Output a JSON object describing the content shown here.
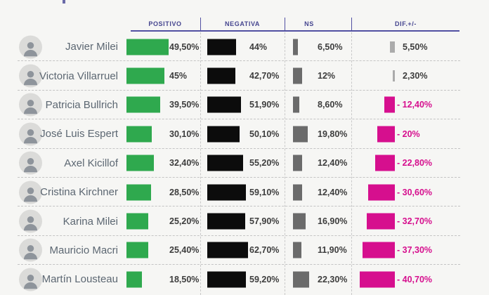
{
  "columns": {
    "positivo": "POSITIVO",
    "negativa": "NEGATIVA",
    "ns": "NS",
    "dif": "DIF.+/-"
  },
  "rows": [
    {
      "name": "Javier Milei",
      "positivo": 49.5,
      "positivo_label": "49,50%",
      "negativa": 44,
      "negativa_label": "44%",
      "ns": 6.5,
      "ns_label": "6,50%",
      "dif": 5.5,
      "dif_label": "5,50%"
    },
    {
      "name": "Victoria Villarruel",
      "positivo": 45,
      "positivo_label": "45%",
      "negativa": 42.7,
      "negativa_label": "42,70%",
      "ns": 12,
      "ns_label": "12%",
      "dif": 2.3,
      "dif_label": "2,30%"
    },
    {
      "name": "Patricia Bullrich",
      "positivo": 39.5,
      "positivo_label": "39,50%",
      "negativa": 51.9,
      "negativa_label": "51,90%",
      "ns": 8.6,
      "ns_label": "8,60%",
      "dif": -12.4,
      "dif_label": "- 12,40%"
    },
    {
      "name": "José Luis Espert",
      "positivo": 30.1,
      "positivo_label": "30,10%",
      "negativa": 50.1,
      "negativa_label": "50,10%",
      "ns": 19.8,
      "ns_label": "19,80%",
      "dif": -20,
      "dif_label": "- 20%"
    },
    {
      "name": "Axel Kicillof",
      "positivo": 32.4,
      "positivo_label": "32,40%",
      "negativa": 55.2,
      "negativa_label": "55,20%",
      "ns": 12.4,
      "ns_label": "12,40%",
      "dif": -22.8,
      "dif_label": "- 22,80%"
    },
    {
      "name": "Cristina Kirchner",
      "positivo": 28.5,
      "positivo_label": "28,50%",
      "negativa": 59.1,
      "negativa_label": "59,10%",
      "ns": 12.4,
      "ns_label": "12,40%",
      "dif": -30.6,
      "dif_label": "- 30,60%"
    },
    {
      "name": "Karina Milei",
      "positivo": 25.2,
      "positivo_label": "25,20%",
      "negativa": 57.9,
      "negativa_label": "57,90%",
      "ns": 16.9,
      "ns_label": "16,90%",
      "dif": -32.7,
      "dif_label": "- 32,70%"
    },
    {
      "name": "Mauricio Macri",
      "positivo": 25.4,
      "positivo_label": "25,40%",
      "negativa": 62.7,
      "negativa_label": "62,70%",
      "ns": 11.9,
      "ns_label": "11,90%",
      "dif": -37.3,
      "dif_label": "- 37,30%"
    },
    {
      "name": "Martín Lousteau",
      "positivo": 18.5,
      "positivo_label": "18,50%",
      "negativa": 59.2,
      "negativa_label": "59,20%",
      "ns": 22.3,
      "ns_label": "22,30%",
      "dif": -40.7,
      "dif_label": "- 40,70%"
    }
  ],
  "colors": {
    "positivo_bar": "#2fa94e",
    "negativa_bar": "#0c0c0c",
    "ns_bar": "#6b6b6b",
    "dif_negative_bar": "#d60f8e",
    "dif_positive_bar": "#ababab",
    "header_text": "#45458f",
    "header_line": "#5150a2",
    "name_text": "#5c6772",
    "value_text": "#3d3d3d",
    "background": "#f6f6f4"
  },
  "chart_data": {
    "type": "bar",
    "title": "",
    "categories": [
      "Javier Milei",
      "Victoria Villarruel",
      "Patricia Bullrich",
      "José Luis Espert",
      "Axel Kicillof",
      "Cristina Kirchner",
      "Karina Milei",
      "Mauricio Macri",
      "Martín Lousteau"
    ],
    "series": [
      {
        "name": "POSITIVO",
        "values": [
          49.5,
          45,
          39.5,
          30.1,
          32.4,
          28.5,
          25.2,
          25.4,
          18.5
        ]
      },
      {
        "name": "NEGATIVA",
        "values": [
          44,
          42.7,
          51.9,
          50.1,
          55.2,
          59.1,
          57.9,
          62.7,
          59.2
        ]
      },
      {
        "name": "NS",
        "values": [
          6.5,
          12,
          8.6,
          19.8,
          12.4,
          12.4,
          16.9,
          11.9,
          22.3
        ]
      },
      {
        "name": "DIF.+/-",
        "values": [
          5.5,
          2.3,
          -12.4,
          -20,
          -22.8,
          -30.6,
          -32.7,
          -37.3,
          -40.7
        ]
      }
    ],
    "xlabel": "",
    "ylabel": "",
    "value_unit": "%",
    "legend_position": "top",
    "grid": "dashed row and column separators",
    "orientation": "horizontal"
  }
}
